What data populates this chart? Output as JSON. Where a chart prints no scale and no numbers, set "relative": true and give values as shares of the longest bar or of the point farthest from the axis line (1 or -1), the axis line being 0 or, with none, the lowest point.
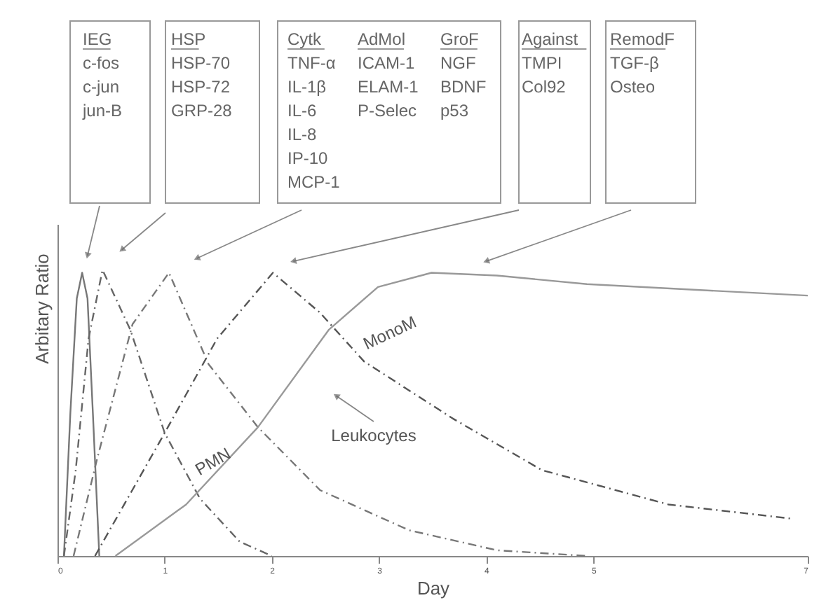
{
  "chart_data": {
    "type": "line",
    "relative": true,
    "xlabel": "Day",
    "ylabel": "Arbitary Ratio",
    "xlim": [
      0,
      7
    ],
    "xticks": [
      0,
      1,
      2,
      3,
      4,
      5,
      7
    ],
    "marker": "none",
    "series": [
      {
        "color": "#777777",
        "line_style": "solid",
        "x": [
          0.06,
          0.12,
          0.18,
          0.23,
          0.28,
          0.33,
          0.39
        ],
        "values": [
          0,
          0.5,
          0.9,
          0.99,
          0.9,
          0.5,
          0
        ]
      },
      {
        "color": "#666666",
        "line_style": "dashed",
        "x": [
          0.06,
          0.17,
          0.29,
          0.42,
          0.68,
          1.0,
          1.33,
          1.7,
          2.0
        ],
        "values": [
          0,
          0.3,
          0.76,
          1.0,
          0.79,
          0.43,
          0.2,
          0.05,
          0
        ]
      },
      {
        "color": "#777777",
        "line_style": "dashed",
        "x": [
          0.15,
          0.37,
          0.7,
          1.04,
          1.41,
          1.87,
          2.45,
          3.28,
          4.1,
          4.94
        ],
        "values": [
          0,
          0.34,
          0.81,
          0.99,
          0.67,
          0.45,
          0.23,
          0.09,
          0.02,
          0
        ]
      },
      {
        "color": "#555555",
        "line_style": "dashed",
        "x": [
          0.35,
          1.0,
          1.49,
          2.01,
          2.45,
          2.86,
          3.69,
          4.52,
          5.7,
          6.86
        ],
        "values": [
          0,
          0.43,
          0.76,
          0.99,
          0.85,
          0.68,
          0.48,
          0.3,
          0.18,
          0.13
        ]
      },
      {
        "color": "#999999",
        "line_style": "solid",
        "x": [
          0.54,
          1.2,
          1.87,
          2.53,
          2.99,
          3.49,
          4.1,
          4.94,
          7.0
        ],
        "values": [
          0,
          0.18,
          0.45,
          0.79,
          0.94,
          0.99,
          0.98,
          0.95,
          0.91
        ]
      }
    ],
    "annotations": [
      "IEG\nc-fos\nc-jun\njun-B",
      "HSP\nHSP-70\nHSP-72\nGRP-28",
      "Cytk\nTNF-α\nIL-1β\nIL-6\nIL-8\nIP-10\nMCP-1",
      "AdMol\nICAM-1\nELAM-1\nP-Selec",
      "GroF\nNGF\nBDNF\np53",
      "Against\nTMPI\nCol92",
      "RemodF\nTGF-β\nOsteo",
      "PMN",
      "MonoM",
      "Leukocytes"
    ]
  }
}
